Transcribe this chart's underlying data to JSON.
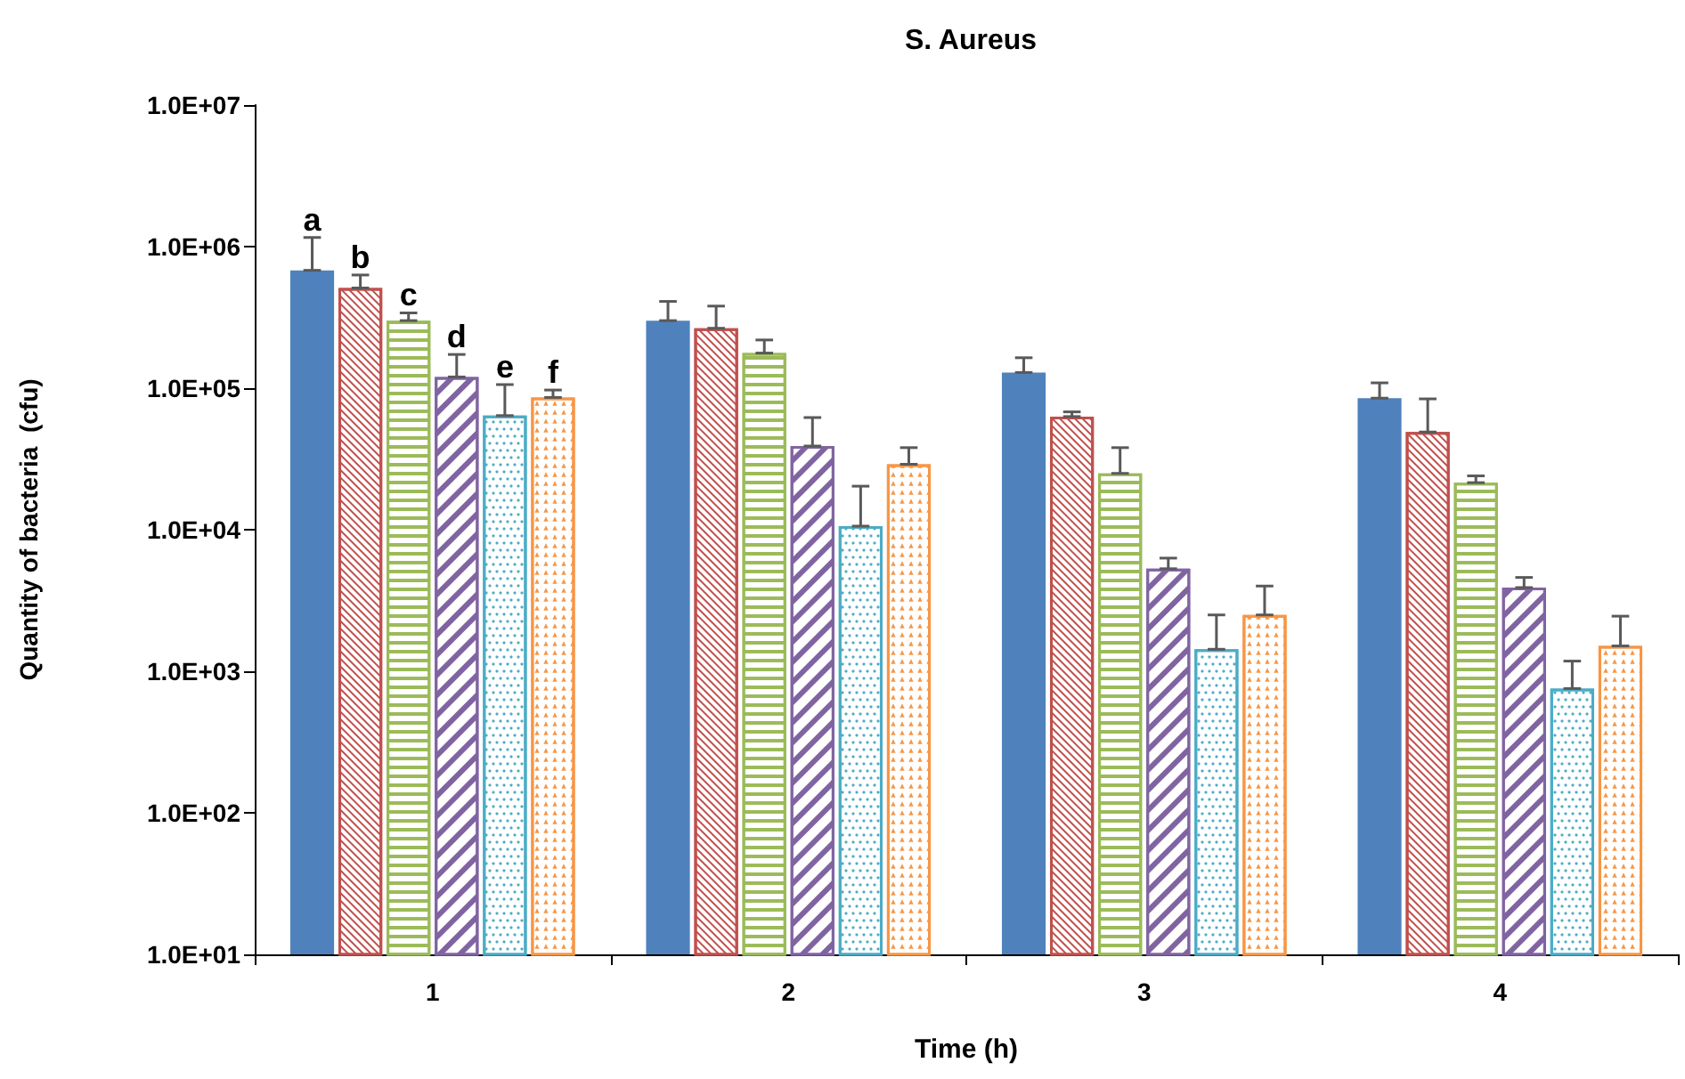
{
  "chart_data": {
    "type": "bar",
    "title": "S. Aureus",
    "xlabel": "Time (h)",
    "ylabel": "Quantity of bacteria  (cfu)",
    "categories": [
      "1",
      "2",
      "3",
      "4"
    ],
    "log": "y",
    "ylim": [
      10,
      10000000
    ],
    "yticks": [
      {
        "value": 10,
        "label": "1.0E+01"
      },
      {
        "value": 100,
        "label": "1.0E+02"
      },
      {
        "value": 1000,
        "label": "1.0E+03"
      },
      {
        "value": 10000,
        "label": "1.0E+04"
      },
      {
        "value": 100000,
        "label": "1.0E+05"
      },
      {
        "value": 1000000,
        "label": "1.0E+06"
      },
      {
        "value": 10000000,
        "label": "1.0E+07"
      }
    ],
    "grid": false,
    "legend": false,
    "series": [
      {
        "name": "a",
        "color": "#4f81bd",
        "values": [
          680000,
          300000,
          129000,
          85000
        ],
        "errors": [
          [
            680000,
            1160000
          ],
          [
            300000,
            410000
          ],
          [
            129000,
            164000
          ],
          [
            85000,
            109000
          ]
        ]
      },
      {
        "name": "b",
        "color": "#c0504d",
        "values": [
          510000,
          265000,
          63000,
          49000
        ],
        "errors": [
          [
            510000,
            630000
          ],
          [
            265000,
            380000
          ],
          [
            63000,
            68000
          ],
          [
            49000,
            84000
          ]
        ]
      },
      {
        "name": "c",
        "color": "#9bbb59",
        "values": [
          300000,
          177000,
          25000,
          21500
        ],
        "errors": [
          [
            300000,
            340000
          ],
          [
            177000,
            219000
          ],
          [
            25000,
            38000
          ],
          [
            21500,
            24000
          ]
        ]
      },
      {
        "name": "d",
        "color": "#8064a2",
        "values": [
          120000,
          39000,
          5300,
          3900
        ],
        "errors": [
          [
            120000,
            173000
          ],
          [
            39000,
            62000
          ],
          [
            5300,
            6300
          ],
          [
            3900,
            4600
          ]
        ]
      },
      {
        "name": "e",
        "color": "#4bacc6",
        "values": [
          64000,
          10600,
          1430,
          755
        ],
        "errors": [
          [
            64000,
            106000
          ],
          [
            10600,
            20300
          ],
          [
            1430,
            2500
          ],
          [
            755,
            1180
          ]
        ]
      },
      {
        "name": "f",
        "color": "#f79646",
        "values": [
          86000,
          29000,
          2500,
          1510
        ],
        "errors": [
          [
            86000,
            97000
          ],
          [
            29000,
            38000
          ],
          [
            2500,
            4000
          ],
          [
            1510,
            2450
          ]
        ]
      }
    ]
  }
}
